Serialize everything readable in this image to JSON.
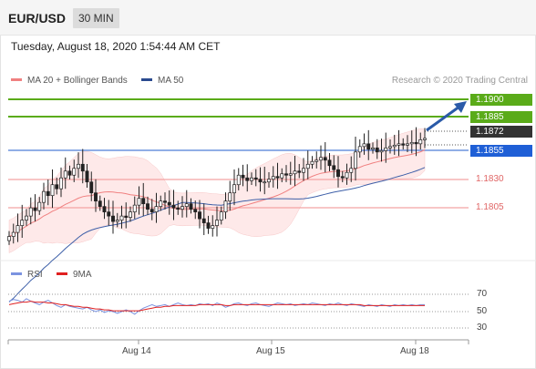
{
  "header": {
    "symbol": "EUR/USD",
    "timeframe": "30 MIN"
  },
  "datetime": "Tuesday, August 18, 2020 1:54:44 AM CET",
  "legend": {
    "ma20_label": "MA 20 + Bollinger Bands",
    "ma50_label": "MA 50",
    "credit": "Research © 2020 Trading Central"
  },
  "oscillator_legend": {
    "rsi_label": "RSI",
    "ma_label": "9MA"
  },
  "colors": {
    "resistance": "#5aab19",
    "current": "#333333",
    "pivot": "#1f5fd6",
    "support": "#f4a3a3",
    "ma20": "#f08080",
    "ma50": "#3d5fa8",
    "band": "#fde0e0",
    "arrow": "#2a5aa8",
    "rsi": "#7b93e0",
    "rsi_ma": "#e02020"
  },
  "levels": [
    {
      "label": "1.1900",
      "type": "resistance"
    },
    {
      "label": "1.1885",
      "type": "resistance"
    },
    {
      "label": "1.1872",
      "type": "current"
    },
    {
      "label": "1.1855",
      "type": "pivot"
    },
    {
      "label": "1.1830",
      "type": "support"
    },
    {
      "label": "1.1805",
      "type": "support"
    }
  ],
  "oscillator_scale": [
    "70",
    "50",
    "30"
  ],
  "x_axis": [
    "Aug 14",
    "Aug 15",
    "Aug 18"
  ],
  "chart_data": {
    "type": "candlestick",
    "pair": "EUR/USD",
    "interval": "30 MIN",
    "price_range": [
      1.1785,
      1.1908
    ],
    "closes": [
      1.18,
      1.1803,
      1.1808,
      1.1812,
      1.1815,
      1.1821,
      1.1819,
      1.1825,
      1.1833,
      1.183,
      1.1838,
      1.1835,
      1.1843,
      1.1848,
      1.1845,
      1.185,
      1.1853,
      1.1848,
      1.184,
      1.1832,
      1.1826,
      1.1822,
      1.1818,
      1.1815,
      1.1811,
      1.1812,
      1.1815,
      1.1814,
      1.1818,
      1.1823,
      1.1828,
      1.1824,
      1.182,
      1.1818,
      1.1822,
      1.1826,
      1.1825,
      1.1823,
      1.1821,
      1.182,
      1.1822,
      1.1824,
      1.182,
      1.1818,
      1.1813,
      1.181,
      1.1806,
      1.1808,
      1.1812,
      1.1818,
      1.1826,
      1.1832,
      1.1838,
      1.1845,
      1.1843,
      1.1841,
      1.1843,
      1.1842,
      1.184,
      1.184,
      1.1842,
      1.1844,
      1.1843,
      1.1846,
      1.1845,
      1.1846,
      1.1848,
      1.1847,
      1.185,
      1.1853,
      1.1855,
      1.1856,
      1.1858,
      1.1856,
      1.1852,
      1.1849,
      1.1844,
      1.1843,
      1.1847,
      1.185,
      1.1862,
      1.1866,
      1.1868,
      1.1864,
      1.1865,
      1.1862,
      1.1863,
      1.1865,
      1.1866,
      1.1867,
      1.1868,
      1.1867,
      1.1868,
      1.1869,
      1.1868,
      1.1871,
      1.1872
    ],
    "rsi": [
      62,
      64,
      63,
      61,
      65,
      62,
      60,
      58,
      61,
      63,
      60,
      57,
      55,
      58,
      56,
      55,
      54,
      53,
      55,
      52,
      50,
      52,
      49,
      51,
      50,
      48,
      50,
      52,
      50,
      47,
      51,
      54,
      56,
      58,
      56,
      57,
      58,
      56,
      58,
      60,
      58,
      57,
      58,
      57,
      59,
      58,
      59,
      57,
      60,
      58,
      55,
      57,
      59,
      60,
      58,
      57,
      59,
      60,
      58,
      57,
      56,
      58,
      60,
      59,
      58,
      59,
      57,
      58,
      59,
      58,
      60,
      59,
      58,
      57,
      59,
      58,
      60,
      58,
      57,
      59,
      58,
      57,
      56,
      58,
      57,
      56,
      58,
      57,
      56,
      58,
      57,
      58,
      57,
      58,
      57,
      58,
      58
    ],
    "rsi_ma": [
      58,
      59,
      60,
      61,
      61,
      62,
      61,
      61,
      61,
      60,
      60,
      59,
      58,
      58,
      57,
      56,
      56,
      55,
      55,
      54,
      53,
      53,
      52,
      52,
      51,
      51,
      51,
      51,
      51,
      51,
      51,
      52,
      53,
      54,
      55,
      55,
      56,
      56,
      57,
      57,
      57,
      57,
      57,
      57,
      58,
      58,
      58,
      58,
      58,
      58,
      57,
      57,
      58,
      58,
      58,
      58,
      58,
      58,
      58,
      58,
      58,
      58,
      58,
      58,
      58,
      58,
      58,
      58,
      58,
      58,
      58,
      58,
      58,
      58,
      58,
      58,
      58,
      58,
      58,
      58,
      58,
      58,
      57,
      57,
      57,
      57,
      57,
      57,
      57,
      57,
      57,
      57,
      57,
      57,
      57,
      57,
      57
    ]
  }
}
